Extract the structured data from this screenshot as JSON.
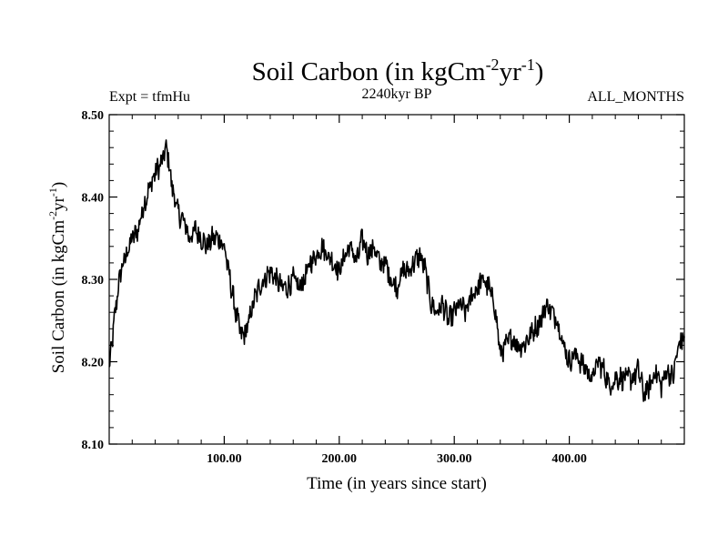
{
  "chart_data": {
    "type": "line",
    "title_main": "Soil Carbon (in kgCm",
    "title_sup1": "-2",
    "title_mid": "yr",
    "title_sup2": "-1",
    "title_end": ")",
    "subtitle_left": "Expt = tfmHu",
    "subtitle_center": "2240kyr BP",
    "subtitle_right": "ALL_MONTHS",
    "ylabel_main": "Soil Carbon (in kgCm",
    "ylabel_sup1": "-2",
    "ylabel_mid": "yr",
    "ylabel_sup2": "-1",
    "ylabel_end": ")",
    "xlabel": "Time (in years since start)",
    "xlim": [
      0,
      500
    ],
    "ylim": [
      8.1,
      8.5
    ],
    "xticks": [
      100,
      200,
      300,
      400
    ],
    "xtick_labels": [
      "100.00",
      "200.00",
      "300.00",
      "400.00"
    ],
    "yticks": [
      8.1,
      8.2,
      8.3,
      8.4,
      8.5
    ],
    "ytick_labels": [
      "8.10",
      "8.20",
      "8.30",
      "8.40",
      "8.50"
    ],
    "line_color": "#000000",
    "series": [
      {
        "name": "Soil Carbon",
        "x": [
          0,
          3,
          6,
          10,
          15,
          20,
          25,
          30,
          35,
          40,
          45,
          50,
          55,
          60,
          65,
          70,
          75,
          80,
          85,
          90,
          95,
          100,
          105,
          110,
          115,
          120,
          125,
          130,
          135,
          140,
          145,
          150,
          155,
          160,
          165,
          170,
          175,
          180,
          185,
          190,
          195,
          200,
          205,
          210,
          215,
          220,
          225,
          230,
          235,
          240,
          245,
          250,
          255,
          260,
          265,
          270,
          275,
          280,
          285,
          290,
          295,
          300,
          305,
          310,
          315,
          320,
          325,
          330,
          335,
          340,
          345,
          350,
          355,
          360,
          365,
          370,
          375,
          380,
          385,
          390,
          395,
          400,
          405,
          410,
          415,
          420,
          425,
          430,
          435,
          440,
          445,
          450,
          455,
          460,
          465,
          470,
          475,
          480,
          485,
          490,
          495,
          500
        ],
        "values": [
          8.19,
          8.23,
          8.27,
          8.31,
          8.33,
          8.35,
          8.36,
          8.39,
          8.41,
          8.43,
          8.44,
          8.46,
          8.41,
          8.38,
          8.37,
          8.35,
          8.36,
          8.35,
          8.34,
          8.35,
          8.35,
          8.34,
          8.3,
          8.26,
          8.23,
          8.24,
          8.27,
          8.29,
          8.3,
          8.31,
          8.3,
          8.29,
          8.29,
          8.3,
          8.29,
          8.3,
          8.32,
          8.33,
          8.34,
          8.33,
          8.32,
          8.31,
          8.33,
          8.34,
          8.32,
          8.35,
          8.33,
          8.34,
          8.32,
          8.32,
          8.3,
          8.29,
          8.31,
          8.31,
          8.32,
          8.33,
          8.31,
          8.27,
          8.26,
          8.27,
          8.25,
          8.26,
          8.27,
          8.26,
          8.28,
          8.29,
          8.3,
          8.29,
          8.27,
          8.21,
          8.22,
          8.23,
          8.22,
          8.22,
          8.23,
          8.24,
          8.25,
          8.27,
          8.26,
          8.25,
          8.22,
          8.2,
          8.21,
          8.2,
          8.19,
          8.18,
          8.2,
          8.19,
          8.17,
          8.18,
          8.18,
          8.18,
          8.18,
          8.19,
          8.16,
          8.17,
          8.19,
          8.17,
          8.19,
          8.18,
          8.22,
          8.23
        ]
      }
    ]
  }
}
